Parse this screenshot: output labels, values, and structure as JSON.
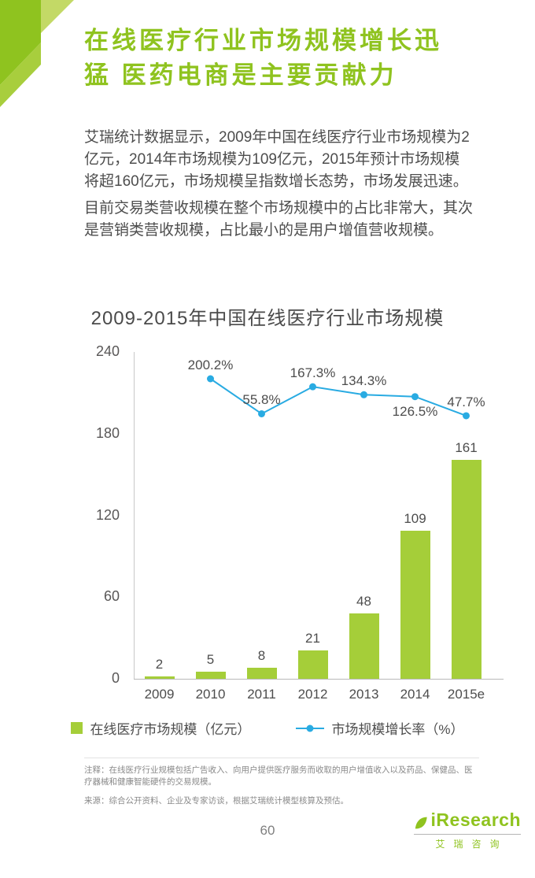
{
  "page": {
    "title_lines": [
      "在线医疗行业市场规模增长迅",
      "猛 医药电商是主要贡献力"
    ],
    "paragraphs": [
      "艾瑞统计数据显示，2009年中国在线医疗行业市场规模为2亿元，2014年市场规模为109亿元，2015年预计市场规模将超160亿元，市场规模呈指数增长态势，市场发展迅速。",
      "目前交易类营收规模在整个市场规模中的占比非常大，其次是营销类营收规模，占比最小的是用户增值营收规模。"
    ],
    "page_number": "60"
  },
  "chart_data": {
    "type": "bar+line",
    "title": "2009-2015年中国在线医疗行业市场规模",
    "categories": [
      "2009",
      "2010",
      "2011",
      "2012",
      "2013",
      "2014",
      "2015e"
    ],
    "series": [
      {
        "name": "在线医疗市场规模（亿元）",
        "type": "bar",
        "color": "#A5CE39",
        "values": [
          2,
          5,
          8,
          21,
          48,
          109,
          161
        ]
      },
      {
        "name": "市场规模增长率（%）",
        "type": "line",
        "color": "#29ABE2",
        "values": [
          null,
          200.2,
          55.8,
          167.3,
          134.3,
          126.5,
          47.7
        ],
        "labels": [
          "",
          "200.2%",
          "55.8%",
          "167.3%",
          "134.3%",
          "126.5%",
          "47.7%"
        ],
        "label_positions": [
          "",
          "above",
          "above",
          "above",
          "above",
          "below",
          "above"
        ]
      }
    ],
    "ylim": [
      0,
      240
    ],
    "yticks": [
      0,
      60,
      120,
      180,
      240
    ],
    "grid": false,
    "legend_position": "bottom"
  },
  "footer": {
    "note": "注释：在线医疗行业规模包括广告收入、向用户提供医疗服务而收取的用户增值收入以及药品、保健品、医疗器械和健康智能硬件的交易规模。",
    "source": "来源：综合公开资料、企业及专家访谈，根据艾瑞统计模型核算及预估。"
  },
  "logo": {
    "brand": "iResearch",
    "brand_cn": "艾瑞咨询"
  },
  "colors": {
    "accent_green": "#8FC31F",
    "accent_green2": "#A8CE3D",
    "light_green": "#C3D966",
    "bar_green": "#A5CE39",
    "line_blue": "#29ABE2"
  }
}
